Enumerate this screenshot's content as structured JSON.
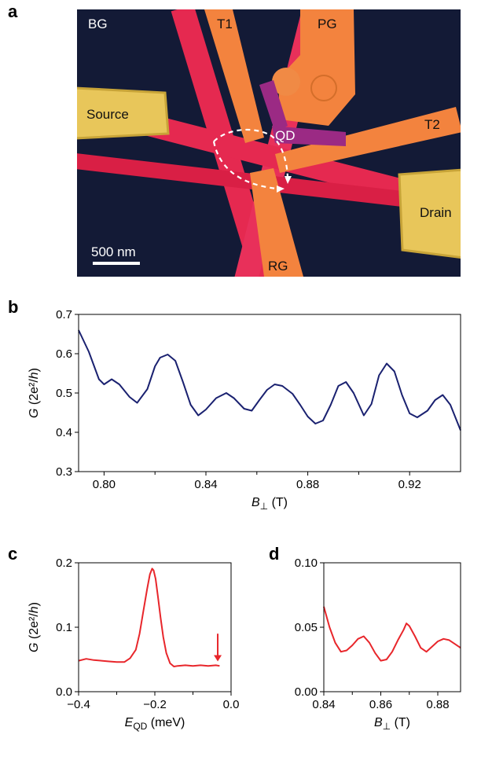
{
  "panels": {
    "a": {
      "label": "a",
      "gate_labels": {
        "bg": "BG",
        "t1": "T1",
        "pg": "PG",
        "source": "Source",
        "qd": "QD",
        "t2": "T2",
        "drain": "Drain",
        "rg": "RG"
      },
      "scale_bar_label": "500 nm",
      "colors": {
        "background": "#131a36",
        "graphene": "#e52950",
        "gates": "#f3833e",
        "contacts": "#e8c65a",
        "dot": "#9b2a84",
        "paths": "#ffffff"
      }
    },
    "b": {
      "label": "b"
    },
    "c": {
      "label": "c"
    },
    "d": {
      "label": "d"
    }
  },
  "chart_data": [
    {
      "id": "b",
      "type": "line",
      "color": "#1a2170",
      "xlabel": "B⊥ (T)",
      "ylabel": "G (2e²/h)",
      "xlim": [
        0.79,
        0.94
      ],
      "ylim": [
        0.3,
        0.7
      ],
      "xticks": [
        0.8,
        0.84,
        0.88,
        0.92
      ],
      "xtick_labels": [
        "0.80",
        "0.84",
        "0.88",
        "0.92"
      ],
      "xminor": [
        0.82,
        0.86,
        0.9
      ],
      "yticks": [
        0.3,
        0.4,
        0.5,
        0.6,
        0.7
      ],
      "ytick_labels": [
        "0.3",
        "0.4",
        "0.5",
        "0.6",
        "0.7"
      ],
      "x": [
        0.79,
        0.794,
        0.798,
        0.8,
        0.803,
        0.806,
        0.81,
        0.813,
        0.817,
        0.82,
        0.822,
        0.825,
        0.828,
        0.831,
        0.834,
        0.837,
        0.84,
        0.844,
        0.848,
        0.851,
        0.855,
        0.858,
        0.861,
        0.864,
        0.867,
        0.87,
        0.874,
        0.877,
        0.88,
        0.883,
        0.886,
        0.889,
        0.892,
        0.895,
        0.898,
        0.902,
        0.905,
        0.908,
        0.911,
        0.914,
        0.917,
        0.92,
        0.923,
        0.927,
        0.93,
        0.933,
        0.936,
        0.94
      ],
      "y": [
        0.66,
        0.605,
        0.535,
        0.522,
        0.535,
        0.522,
        0.49,
        0.475,
        0.51,
        0.568,
        0.59,
        0.598,
        0.582,
        0.528,
        0.47,
        0.443,
        0.458,
        0.487,
        0.5,
        0.487,
        0.46,
        0.455,
        0.482,
        0.508,
        0.522,
        0.518,
        0.498,
        0.47,
        0.44,
        0.422,
        0.43,
        0.47,
        0.518,
        0.528,
        0.5,
        0.443,
        0.472,
        0.545,
        0.575,
        0.555,
        0.495,
        0.448,
        0.438,
        0.455,
        0.482,
        0.495,
        0.47,
        0.405
      ]
    },
    {
      "id": "c",
      "type": "line",
      "color": "#e8262b",
      "xlabel": "E_QD (meV)",
      "ylabel": "G (2e²/h)",
      "xlim": [
        -0.4,
        0.0
      ],
      "ylim": [
        0.0,
        0.2
      ],
      "xticks": [
        -0.4,
        -0.2,
        0.0
      ],
      "xtick_labels": [
        "−0.4",
        "−0.2",
        "0.0"
      ],
      "xminor": [
        -0.3,
        -0.1
      ],
      "yticks": [
        0.0,
        0.1,
        0.2
      ],
      "ytick_labels": [
        "0.0",
        "0.1",
        "0.2"
      ],
      "x": [
        -0.4,
        -0.38,
        -0.36,
        -0.34,
        -0.32,
        -0.3,
        -0.28,
        -0.265,
        -0.25,
        -0.24,
        -0.23,
        -0.22,
        -0.213,
        -0.207,
        -0.203,
        -0.198,
        -0.192,
        -0.185,
        -0.178,
        -0.17,
        -0.16,
        -0.15,
        -0.14,
        -0.12,
        -0.1,
        -0.08,
        -0.06,
        -0.04,
        -0.03
      ],
      "y": [
        0.048,
        0.051,
        0.049,
        0.048,
        0.047,
        0.046,
        0.046,
        0.052,
        0.065,
        0.09,
        0.125,
        0.16,
        0.182,
        0.191,
        0.188,
        0.175,
        0.148,
        0.115,
        0.085,
        0.06,
        0.044,
        0.039,
        0.04,
        0.041,
        0.04,
        0.041,
        0.04,
        0.041,
        0.04
      ],
      "annotation": {
        "type": "arrow",
        "x": -0.035,
        "y_from": 0.09,
        "y_to": 0.047
      }
    },
    {
      "id": "d",
      "type": "line",
      "color": "#e8262b",
      "xlabel": "B⊥ (T)",
      "ylabel": "",
      "xlim": [
        0.84,
        0.888
      ],
      "ylim": [
        0.0,
        0.1
      ],
      "xticks": [
        0.84,
        0.86,
        0.88
      ],
      "xtick_labels": [
        "0.84",
        "0.86",
        "0.88"
      ],
      "xminor": [
        0.85,
        0.87
      ],
      "yticks": [
        0.0,
        0.05,
        0.1
      ],
      "ytick_labels": [
        "0.00",
        "0.05",
        "0.10"
      ],
      "x": [
        0.84,
        0.842,
        0.844,
        0.846,
        0.848,
        0.85,
        0.852,
        0.854,
        0.856,
        0.858,
        0.86,
        0.862,
        0.864,
        0.866,
        0.868,
        0.869,
        0.87,
        0.872,
        0.874,
        0.876,
        0.878,
        0.88,
        0.882,
        0.884,
        0.886,
        0.888
      ],
      "y": [
        0.066,
        0.05,
        0.038,
        0.031,
        0.032,
        0.036,
        0.041,
        0.043,
        0.038,
        0.03,
        0.024,
        0.025,
        0.031,
        0.04,
        0.048,
        0.053,
        0.051,
        0.043,
        0.034,
        0.031,
        0.035,
        0.039,
        0.041,
        0.04,
        0.037,
        0.034
      ]
    }
  ]
}
